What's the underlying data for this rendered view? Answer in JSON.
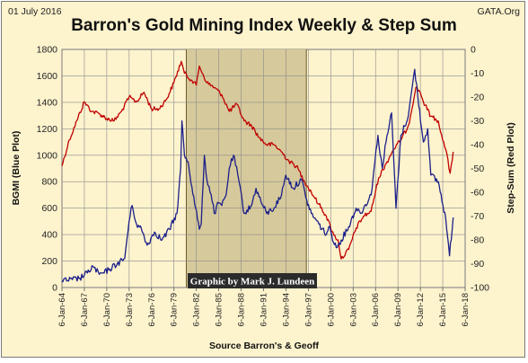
{
  "header": {
    "date": "01 July 2016",
    "source_site": "GATA.Org"
  },
  "chart_data": {
    "type": "line",
    "title": "Barron's Gold Mining Index Weekly & Step Sum",
    "xlabel": "Source Barron's & Geoff",
    "ylabel_left": "BGMI  (Blue Plot)",
    "ylabel_right": "Step-Sum  (Red Plot)",
    "annotation": "Graphic by Mark J. Lundeen",
    "x_ticks": [
      "6-Jan-64",
      "6-Jan-67",
      "6-Jan-70",
      "6-Jan-73",
      "6-Jan-76",
      "6-Jan-79",
      "6-Jan-82",
      "6-Jan-85",
      "6-Jan-88",
      "6-Jan-91",
      "6-Jan-94",
      "6-Jan-97",
      "6-Jan-00",
      "6-Jan-03",
      "6-Jan-06",
      "6-Jan-09",
      "6-Jan-12",
      "6-Jan-15",
      "6-Jan-18"
    ],
    "y_left_ticks": [
      0,
      200,
      400,
      600,
      800,
      1000,
      1200,
      1400,
      1600,
      1800
    ],
    "y_right_ticks": [
      0,
      -10,
      -20,
      -30,
      -40,
      -50,
      -60,
      -70,
      -80,
      -90,
      -100
    ],
    "ylim_left": [
      0,
      1800
    ],
    "ylim_right": [
      -100,
      0
    ],
    "xlim": [
      "1964-01-06",
      "2018-01-06"
    ],
    "shaded_region": [
      "1980-09",
      "1996-10"
    ],
    "grid": true,
    "colors": {
      "bgmi": "#1b1f8a",
      "step_sum": "#c00000",
      "shade": "#d6c99b",
      "background": "#fdf3cd"
    },
    "series": [
      {
        "name": "BGMI",
        "axis": "left",
        "x": [
          "1964-01",
          "1965-06",
          "1966-06",
          "1967-06",
          "1968-03",
          "1969-01",
          "1969-09",
          "1970-06",
          "1971-06",
          "1972-06",
          "1973-01",
          "1973-06",
          "1974-01",
          "1974-09",
          "1975-06",
          "1976-06",
          "1977-06",
          "1978-06",
          "1979-06",
          "1979-12",
          "1980-02",
          "1980-06",
          "1980-12",
          "1981-06",
          "1981-12",
          "1982-06",
          "1982-09",
          "1983-02",
          "1983-06",
          "1984-01",
          "1984-06",
          "1985-01",
          "1985-06",
          "1986-01",
          "1986-06",
          "1987-01",
          "1987-09",
          "1988-06",
          "1989-06",
          "1990-01",
          "1990-09",
          "1991-06",
          "1992-06",
          "1993-06",
          "1994-01",
          "1995-01",
          "1996-02",
          "1996-09",
          "1997-06",
          "1998-06",
          "1999-06",
          "1999-10",
          "2000-10",
          "2001-06",
          "2002-06",
          "2003-06",
          "2004-01",
          "2005-06",
          "2006-05",
          "2006-12",
          "2007-06",
          "2008-03",
          "2008-10",
          "2009-06",
          "2010-06",
          "2011-04",
          "2011-09",
          "2012-06",
          "2013-01",
          "2013-06",
          "2014-06",
          "2015-06",
          "2015-12",
          "2016-06"
        ],
        "values": [
          50,
          60,
          70,
          110,
          160,
          100,
          110,
          140,
          180,
          220,
          500,
          620,
          480,
          440,
          320,
          420,
          360,
          440,
          560,
          900,
          1260,
          1000,
          950,
          760,
          600,
          440,
          480,
          1000,
          820,
          700,
          560,
          640,
          620,
          700,
          900,
          1000,
          820,
          560,
          620,
          750,
          650,
          560,
          600,
          700,
          850,
          750,
          820,
          680,
          560,
          480,
          400,
          460,
          300,
          360,
          460,
          600,
          560,
          700,
          1150,
          900,
          1100,
          1320,
          600,
          1150,
          1300,
          1650,
          1450,
          1100,
          1200,
          850,
          800,
          520,
          240,
          530
        ]
      },
      {
        "name": "Step-Sum",
        "axis": "right",
        "x": [
          "1964-01",
          "1965-01",
          "1966-01",
          "1967-01",
          "1968-01",
          "1969-01",
          "1970-01",
          "1971-01",
          "1972-01",
          "1973-01",
          "1974-01",
          "1975-01",
          "1976-01",
          "1977-01",
          "1978-01",
          "1979-01",
          "1980-01",
          "1980-06",
          "1981-06",
          "1982-01",
          "1982-06",
          "1983-06",
          "1984-06",
          "1985-06",
          "1986-06",
          "1987-06",
          "1988-06",
          "1989-06",
          "1990-06",
          "1991-06",
          "1992-06",
          "1993-06",
          "1994-06",
          "1995-06",
          "1996-06",
          "1997-06",
          "1998-06",
          "1999-06",
          "2000-06",
          "2001-01",
          "2001-06",
          "2002-06",
          "2003-06",
          "2004-06",
          "2005-06",
          "2006-06",
          "2007-06",
          "2008-06",
          "2009-06",
          "2010-06",
          "2011-06",
          "2012-01",
          "2012-06",
          "2013-06",
          "2014-06",
          "2015-01",
          "2015-06",
          "2016-01",
          "2016-06"
        ],
        "values": [
          -49,
          -38,
          -30,
          -22,
          -26,
          -27,
          -29,
          -30,
          -26,
          -20,
          -22,
          -18,
          -25,
          -25,
          -21,
          -14,
          -5,
          -10,
          -13,
          -15,
          -7,
          -14,
          -16,
          -19,
          -26,
          -23,
          -30,
          -32,
          -37,
          -40,
          -40,
          -43,
          -47,
          -49,
          -55,
          -60,
          -65,
          -70,
          -78,
          -80,
          -88,
          -84,
          -75,
          -70,
          -68,
          -54,
          -48,
          -42,
          -38,
          -32,
          -16,
          -18,
          -22,
          -28,
          -30,
          -38,
          -42,
          -52,
          -43
        ]
      }
    ]
  }
}
